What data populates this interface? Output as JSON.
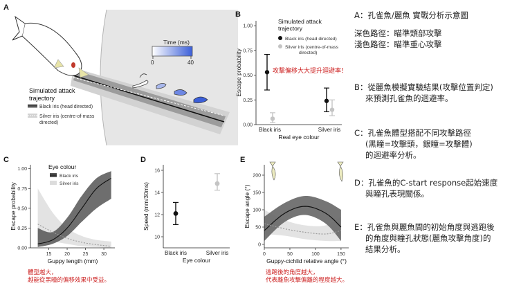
{
  "panel_labels": {
    "a": "A",
    "b": "B",
    "c": "C",
    "d": "D",
    "e": "E"
  },
  "panel_a": {
    "time_title": "Time (ms)",
    "time_min": "0",
    "time_max": "40",
    "legend_title_1": "Simulated attack",
    "legend_title_2": "trajectory",
    "legend_black": "Black iris (head directed)",
    "legend_silver_1": "Silver iris (centre-of-mass",
    "legend_silver_2": "directed)",
    "colors": {
      "time_start": "#ffffff",
      "time_end": "#3b5fd9",
      "fish_eye": "#c0392b"
    }
  },
  "annotation_b": "攻擊偏移大大提升迴避率！",
  "caption_c": [
    "體型越大，",
    "越能從黑曈的偏移效果中受益。"
  ],
  "caption_e": [
    "逃跑後的角度越大，",
    "代表離魚攻擊偏離的程度越大。"
  ],
  "sidebar": {
    "a_lines": [
      "A：孔雀魚/麗魚 實戰分析示意圖",
      "深色路徑：瞄準頭部攻擊",
      "淺色路徑：瞄準重心攻擊"
    ],
    "b_lines": [
      "B：從麗魚模擬實驗結果(攻擊位置判定)",
      "來預測孔雀魚的迴避率。"
    ],
    "c_lines": [
      "C：孔雀魚體型搭配不同攻擊路徑",
      "(黑瞳=攻擊頭，銀瞳=攻擊體)",
      "的迴避率分析。"
    ],
    "d_lines": [
      "D：孔雀魚的C-start response起始速度",
      "與瞳孔表現關係。"
    ],
    "e_lines": [
      "E：孔雀魚與麗魚間的初始角度與逃跑後",
      "的角度與瞳孔狀態(麗魚攻擊角度)的",
      "結果分析。"
    ]
  },
  "chart_data": [
    {
      "id": "B",
      "type": "scatter",
      "title": "",
      "xlabel": "Real eye colour",
      "ylabel": "Escape probability",
      "categories": [
        "Black iris",
        "Silver iris"
      ],
      "ylim": [
        0,
        1.05
      ],
      "yticks": [
        "0.00",
        "0.25",
        "0.50",
        "0.75",
        "1.00"
      ],
      "legend_title": [
        "Simulated attack",
        "trajectory"
      ],
      "legend": [
        "Black iris (head directed)",
        "Silver iris (centre-of-mass",
        "directed)"
      ],
      "series": [
        {
          "name": "Black iris (head directed)",
          "color": "#111111",
          "points": [
            {
              "x": "Black iris",
              "y": 0.53,
              "lo": 0.35,
              "hi": 0.71
            },
            {
              "x": "Silver iris",
              "y": 0.24,
              "lo": 0.13,
              "hi": 0.37
            }
          ]
        },
        {
          "name": "Silver iris (centre-of-mass directed)",
          "color": "#c4c4c4",
          "points": [
            {
              "x": "Black iris",
              "y": 0.06,
              "lo": 0.02,
              "hi": 0.12
            },
            {
              "x": "Silver iris",
              "y": 0.15,
              "lo": 0.09,
              "hi": 0.25
            }
          ]
        }
      ]
    },
    {
      "id": "C",
      "type": "line",
      "title": "",
      "xlabel": "Guppy length (mm)",
      "ylabel": "Escape probability",
      "xlim": [
        10,
        33
      ],
      "ylim": [
        0,
        1.05
      ],
      "xticks": [
        "15",
        "20",
        "25",
        "30"
      ],
      "yticks": [
        "0.00",
        "0.25",
        "0.50",
        "0.75",
        "1.00"
      ],
      "legend_title": "Eye colour",
      "series": [
        {
          "name": "Black iris",
          "color": "#111111",
          "band": "#555555",
          "x": [
            12,
            16,
            20,
            24,
            28,
            32
          ],
          "y": [
            0.05,
            0.1,
            0.25,
            0.5,
            0.75,
            0.88
          ],
          "lo": [
            0.01,
            0.05,
            0.15,
            0.33,
            0.5,
            0.62
          ],
          "hi": [
            0.25,
            0.2,
            0.38,
            0.66,
            0.88,
            0.97
          ]
        },
        {
          "name": "Silver iris",
          "color": "#9a9a9a",
          "band": "#dcdcdc",
          "x": [
            12,
            16,
            20,
            24,
            28,
            32
          ],
          "y": [
            0.3,
            0.2,
            0.12,
            0.07,
            0.04,
            0.02
          ],
          "lo": [
            0.1,
            0.08,
            0.05,
            0.02,
            0.01,
            0.0
          ],
          "hi": [
            0.75,
            0.45,
            0.25,
            0.15,
            0.1,
            0.08
          ]
        }
      ]
    },
    {
      "id": "D",
      "type": "scatter",
      "title": "",
      "xlabel": "Eye colour",
      "ylabel": "Speed (mm/30ms)",
      "categories": [
        "Black iris",
        "Silver iris"
      ],
      "ylim": [
        9,
        16.5
      ],
      "yticks": [
        "10",
        "12",
        "14",
        "16"
      ],
      "series": [
        {
          "name": "mean",
          "points": [
            {
              "x": "Black iris",
              "y": 12.1,
              "lo": 11.1,
              "hi": 13.1,
              "color": "#111111"
            },
            {
              "x": "Silver iris",
              "y": 14.8,
              "lo": 14.2,
              "hi": 15.7,
              "color": "#c4c4c4"
            }
          ]
        }
      ]
    },
    {
      "id": "E",
      "type": "line",
      "title": "",
      "xlabel": "Guppy-cichlid relative angle (°)",
      "ylabel": "Escape angle (°)",
      "xlim": [
        0,
        165
      ],
      "ylim": [
        -10,
        230
      ],
      "xticks": [
        "0",
        "50",
        "100",
        "150"
      ],
      "yticks": [
        "0",
        "50",
        "100",
        "150",
        "200"
      ],
      "series": [
        {
          "name": "Black iris",
          "color": "#111111",
          "band": "#666666",
          "x": [
            0,
            40,
            80,
            120,
            150
          ],
          "y": [
            40,
            90,
            110,
            90,
            50
          ],
          "lo": [
            10,
            65,
            85,
            60,
            10
          ],
          "hi": [
            80,
            120,
            140,
            125,
            100
          ]
        },
        {
          "name": "Silver iris",
          "color": "#9a9a9a",
          "band": "#dcdcdc",
          "x": [
            0,
            40,
            80,
            120,
            150
          ],
          "y": [
            60,
            45,
            35,
            30,
            40
          ],
          "lo": [
            30,
            25,
            15,
            10,
            10
          ],
          "hi": [
            100,
            70,
            55,
            55,
            80
          ]
        }
      ]
    }
  ]
}
